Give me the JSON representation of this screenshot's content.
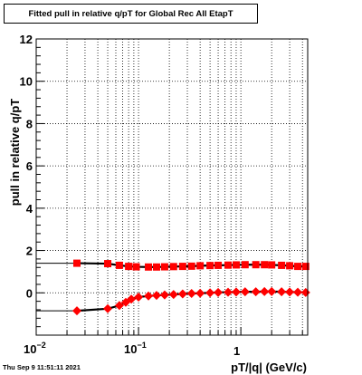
{
  "chart_data": {
    "type": "scatter",
    "title": "Fitted pull in relative q/pT for Global Rec All EtapT",
    "xlabel": "pT/|q| (GeV/c)",
    "ylabel": "pull in relative q/pT",
    "xscale": "log",
    "xlim": [
      0.01,
      4.5
    ],
    "ylim": [
      -2,
      12
    ],
    "grid": true,
    "x_ticks": [
      "10^-2",
      "10^-1",
      "1"
    ],
    "y_ticks": [
      "0",
      "2",
      "4",
      "6",
      "8",
      "10",
      "12"
    ],
    "series": [
      {
        "marker": "square",
        "color": "#ff0000",
        "x": [
          0.025,
          0.05,
          0.065,
          0.08,
          0.095,
          0.125,
          0.15,
          0.18,
          0.22,
          0.27,
          0.33,
          0.4,
          0.5,
          0.6,
          0.75,
          0.9,
          1.1,
          1.4,
          1.7,
          2.0,
          2.5,
          3.0,
          3.6,
          4.3
        ],
        "y": [
          1.4,
          1.38,
          1.3,
          1.25,
          1.23,
          1.22,
          1.22,
          1.23,
          1.24,
          1.25,
          1.26,
          1.28,
          1.29,
          1.3,
          1.31,
          1.32,
          1.33,
          1.33,
          1.33,
          1.32,
          1.3,
          1.28,
          1.25,
          1.25
        ]
      },
      {
        "marker": "diamond",
        "color": "#ff0000",
        "x": [
          0.025,
          0.05,
          0.065,
          0.075,
          0.085,
          0.1,
          0.125,
          0.15,
          0.18,
          0.22,
          0.27,
          0.33,
          0.4,
          0.5,
          0.6,
          0.75,
          0.9,
          1.1,
          1.4,
          1.7,
          2.0,
          2.5,
          3.0,
          3.6,
          4.3
        ],
        "y": [
          -0.85,
          -0.75,
          -0.6,
          -0.45,
          -0.3,
          -0.2,
          -0.15,
          -0.12,
          -0.1,
          -0.08,
          -0.05,
          -0.03,
          -0.02,
          0.0,
          0.02,
          0.03,
          0.04,
          0.05,
          0.05,
          0.06,
          0.06,
          0.05,
          0.04,
          0.03,
          0.02
        ]
      }
    ]
  },
  "timestamp": "Thu Sep  9 11:51:11 2021"
}
